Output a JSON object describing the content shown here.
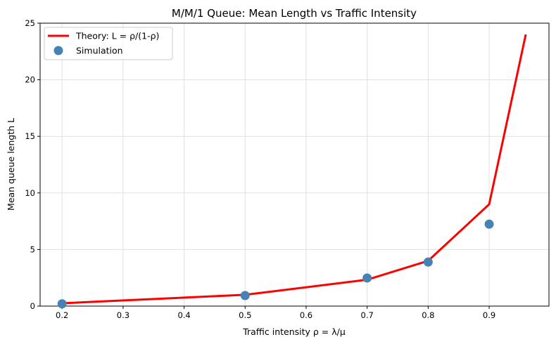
{
  "chart_data": {
    "type": "line",
    "title": "M/M/1 Queue: Mean Length vs Traffic Intensity",
    "xlabel": "Traffic intensity ρ = λ/μ",
    "ylabel": "Mean queue length L",
    "xlim": [
      0.164,
      0.998
    ],
    "ylim": [
      0,
      25
    ],
    "xticks": [
      "0.2",
      "0.3",
      "0.4",
      "0.5",
      "0.6",
      "0.7",
      "0.8",
      "0.9"
    ],
    "yticks": [
      "0",
      "5",
      "10",
      "15",
      "20",
      "25"
    ],
    "grid": true,
    "legend": "top-left",
    "series": [
      {
        "name": "Theory: L = ρ/(1-ρ)",
        "type": "line",
        "color": "#ff0000",
        "x": [
          0.2,
          0.5,
          0.7,
          0.8,
          0.9,
          0.96
        ],
        "y": [
          0.25,
          1.0,
          2.333,
          4.0,
          9.0,
          24.0
        ]
      },
      {
        "name": "Simulation",
        "type": "scatter",
        "color": "#4682b4",
        "x": [
          0.2,
          0.5,
          0.7,
          0.8,
          0.9
        ],
        "y": [
          0.2,
          0.93,
          2.48,
          3.89,
          7.24
        ]
      }
    ]
  }
}
